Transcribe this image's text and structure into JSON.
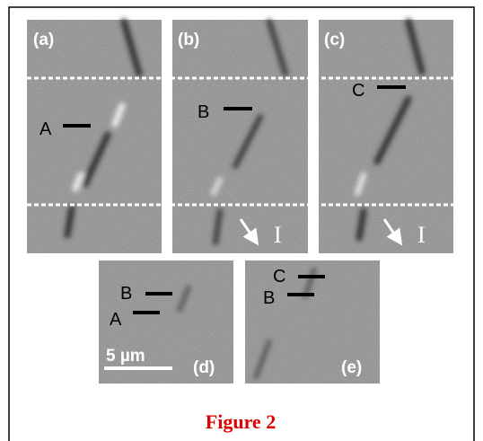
{
  "panels": [
    {
      "label": "(a)",
      "markers": [
        "A"
      ]
    },
    {
      "label": "(b)",
      "markers": [
        "B"
      ]
    },
    {
      "label": "(c)",
      "markers": [
        "C"
      ]
    },
    {
      "label": "(d)",
      "markers": [
        "B",
        "A"
      ],
      "scale_bar": "5 µm"
    },
    {
      "label": "(e)",
      "markers": [
        "C",
        "B"
      ]
    }
  ],
  "current_label": "I",
  "caption": "Figure 2"
}
